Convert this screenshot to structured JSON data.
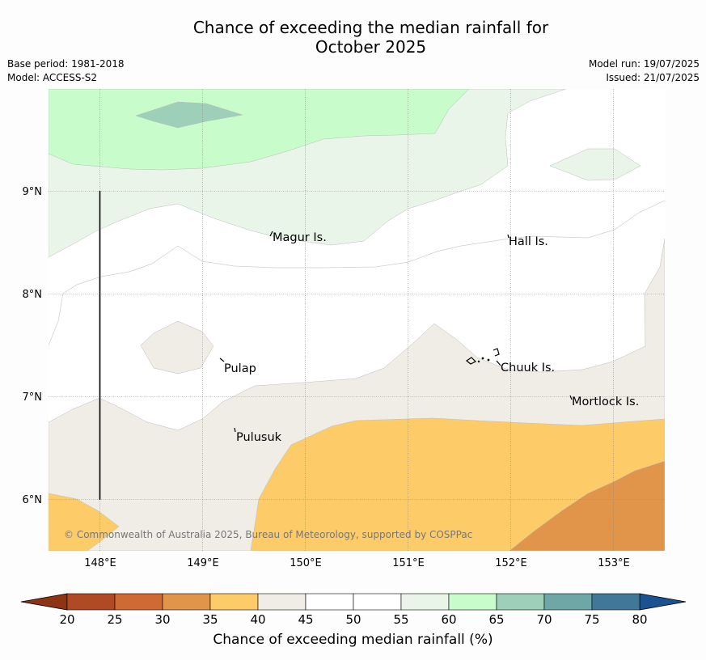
{
  "title_line1": "Chance of exceeding the median rainfall for",
  "title_line2": "October 2025",
  "meta_left": {
    "base_period": "Base period: 1981-2018",
    "model": "Model: ACCESS-S2"
  },
  "meta_right": {
    "model_run": "Model run: 19/07/2025",
    "issued": "Issued: 21/07/2025"
  },
  "axes": {
    "lon_labels": [
      "148°E",
      "149°E",
      "150°E",
      "151°E",
      "152°E",
      "153°E"
    ],
    "lat_labels": [
      "9°N",
      "8°N",
      "7°N",
      "6°N"
    ]
  },
  "places": [
    "Magur Is.",
    "Hall Is.",
    "Pulap",
    "Chuuk Is.",
    "Mortlock Is.",
    "Pulusuk"
  ],
  "copyright": "© Commonwealth of Australia 2025, Bureau of Meteorology, supported by COSPPac",
  "colorbar": {
    "label": "Chance of exceeding median rainfall (%)",
    "ticks": [
      "20",
      "25",
      "30",
      "35",
      "40",
      "45",
      "50",
      "55",
      "60",
      "65",
      "70",
      "75",
      "80"
    ],
    "colors": [
      "#b04a24",
      "#cf6a34",
      "#e0954a",
      "#fdcc68",
      "#f0ece6",
      "#ffffff",
      "#ffffff",
      "#eaf5ea",
      "#c9fccb",
      "#9ecfb9",
      "#6fa7a7",
      "#41789a"
    ],
    "low_extend_color": "#8f3315",
    "high_extend_color": "#1d5290"
  },
  "colors": {
    "band_30_35": "#e0954a",
    "band_35_40": "#fdcc68",
    "band_40_45": "#f0ece6",
    "band_55_60": "#eaf5ea",
    "band_60_65": "#c9fccb",
    "band_65_70": "#9ecfb9"
  }
}
